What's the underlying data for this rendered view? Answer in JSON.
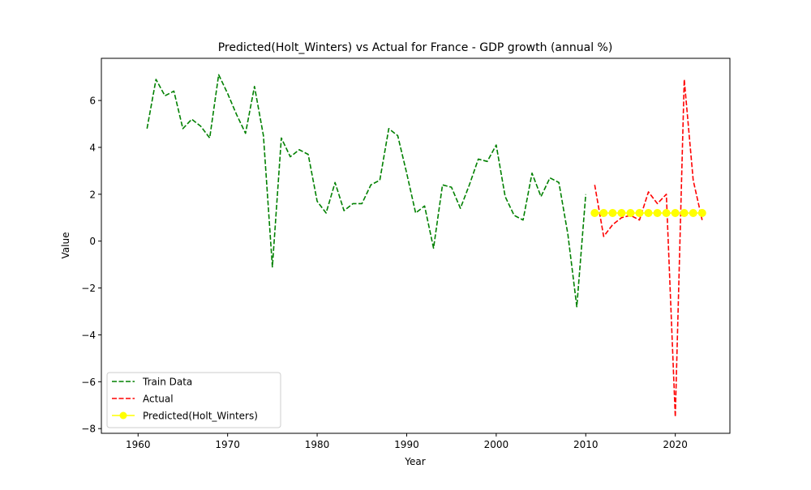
{
  "chart_data": {
    "type": "line",
    "title": "Predicted(Holt_Winters) vs Actual for France - GDP growth (annual %)",
    "xlabel": "Year",
    "ylabel": "Value",
    "xlim": [
      1955.9,
      2026.1
    ],
    "ylim": [
      -8.2,
      7.8
    ],
    "xticks": [
      1960,
      1970,
      1980,
      1990,
      2000,
      2010,
      2020
    ],
    "yticks": [
      -8,
      -6,
      -4,
      -2,
      0,
      2,
      4,
      6
    ],
    "grid": false,
    "legend_position": "lower-left",
    "series": [
      {
        "name": "Train Data",
        "style": "dashed",
        "color": "#008000",
        "marker": "none",
        "x": [
          1961,
          1962,
          1963,
          1964,
          1965,
          1966,
          1967,
          1968,
          1969,
          1970,
          1971,
          1972,
          1973,
          1974,
          1975,
          1976,
          1977,
          1978,
          1979,
          1980,
          1981,
          1982,
          1983,
          1984,
          1985,
          1986,
          1987,
          1988,
          1989,
          1990,
          1991,
          1992,
          1993,
          1994,
          1995,
          1996,
          1997,
          1998,
          1999,
          2000,
          2001,
          2002,
          2003,
          2004,
          2005,
          2006,
          2007,
          2008,
          2009,
          2010
        ],
        "y": [
          4.8,
          6.9,
          6.2,
          6.4,
          4.8,
          5.2,
          4.9,
          4.4,
          7.1,
          6.3,
          5.4,
          4.6,
          6.6,
          4.5,
          -1.1,
          4.4,
          3.6,
          3.9,
          3.7,
          1.7,
          1.2,
          2.5,
          1.3,
          1.6,
          1.6,
          2.4,
          2.6,
          4.8,
          4.5,
          2.9,
          1.2,
          1.5,
          -0.3,
          2.4,
          2.3,
          1.4,
          2.4,
          3.5,
          3.4,
          4.1,
          1.9,
          1.1,
          0.9,
          2.9,
          1.9,
          2.7,
          2.5,
          0.3,
          -2.8,
          2.0
        ]
      },
      {
        "name": "Actual",
        "style": "dashed",
        "color": "#ff0000",
        "marker": "none",
        "x": [
          2011,
          2012,
          2013,
          2014,
          2015,
          2016,
          2017,
          2018,
          2019,
          2020,
          2021,
          2022,
          2023
        ],
        "y": [
          2.4,
          0.2,
          0.7,
          1.0,
          1.1,
          0.9,
          2.1,
          1.6,
          2.0,
          -7.5,
          6.9,
          2.6,
          0.9
        ]
      },
      {
        "name": "Predicted(Holt_Winters)",
        "style": "solid",
        "color": "#ffff00",
        "marker": "circle",
        "x": [
          2011,
          2012,
          2013,
          2014,
          2015,
          2016,
          2017,
          2018,
          2019,
          2020,
          2021,
          2022,
          2023
        ],
        "y": [
          1.2,
          1.2,
          1.2,
          1.2,
          1.2,
          1.2,
          1.2,
          1.2,
          1.2,
          1.2,
          1.2,
          1.2,
          1.2
        ]
      }
    ]
  }
}
